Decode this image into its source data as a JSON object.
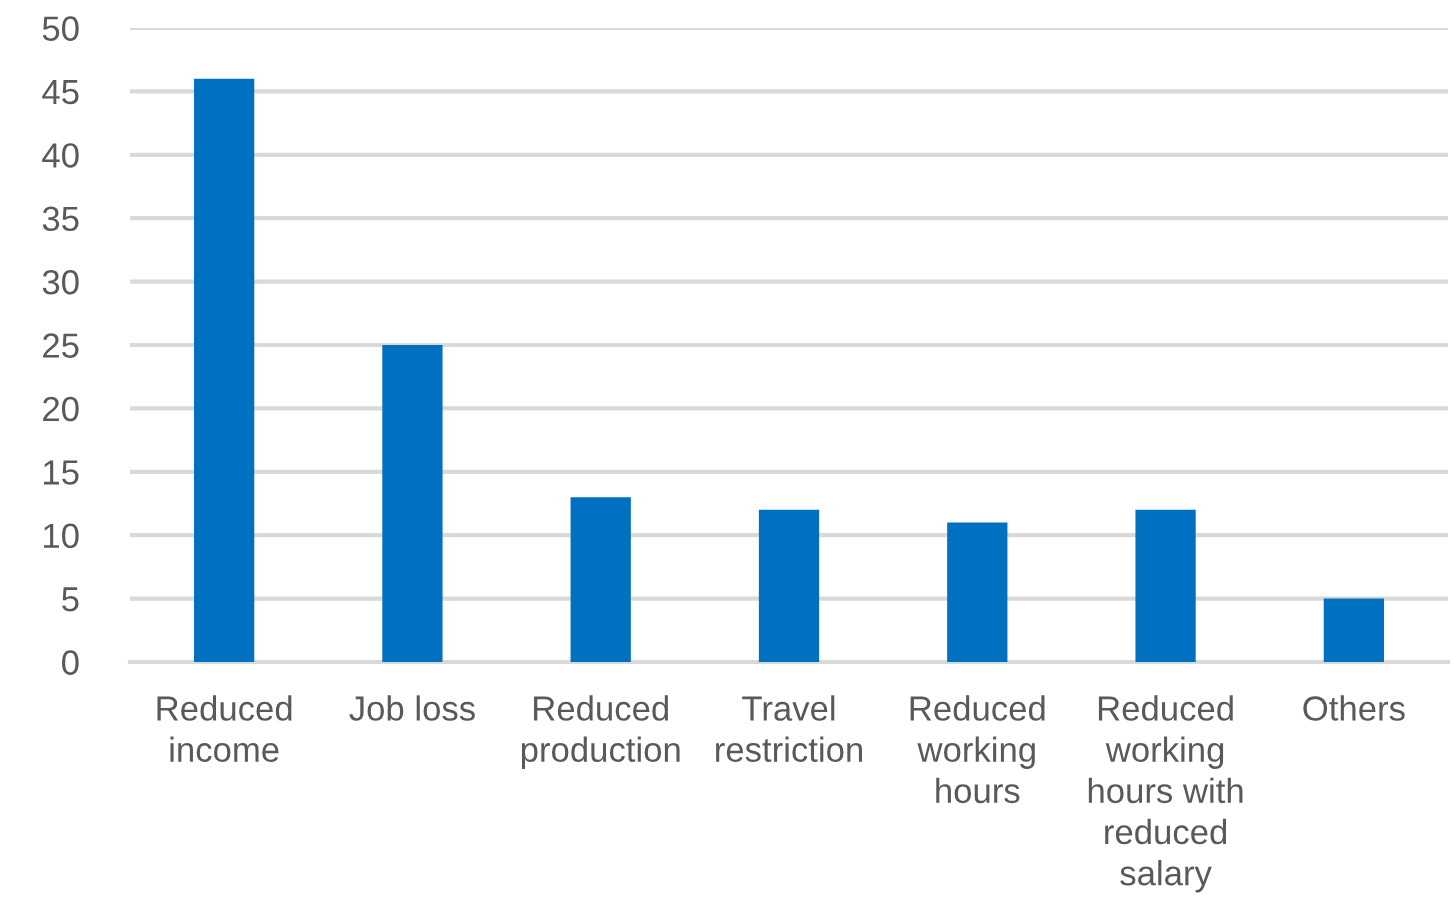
{
  "chart_data": {
    "type": "bar",
    "categories": [
      "Reduced\nincome",
      "Job loss",
      "Reduced\nproduction",
      "Travel\nrestriction",
      "Reduced\nworking\nhours",
      "Reduced\nworking\nhours with\nreduced\nsalary",
      "Others"
    ],
    "values": [
      46,
      25,
      13,
      12,
      11,
      12,
      5
    ],
    "color": "#0070c0",
    "ylim": [
      0,
      50
    ],
    "yticks": [
      0,
      5,
      10,
      15,
      20,
      25,
      30,
      35,
      40,
      45,
      50
    ],
    "grid": "y",
    "legend": false
  }
}
